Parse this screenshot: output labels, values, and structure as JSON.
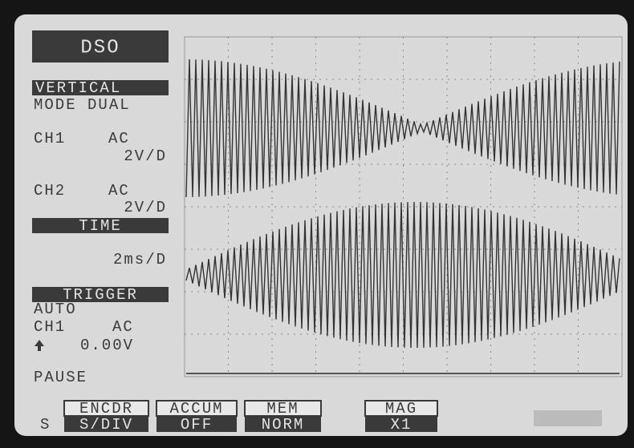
{
  "header": {
    "title": "DSO"
  },
  "vertical": {
    "heading": "VERTICAL",
    "mode": "MODE DUAL",
    "ch1": {
      "label": "CH1",
      "coupling": "AC",
      "scale": "2V/D"
    },
    "ch2": {
      "label": "CH2",
      "coupling": "AC",
      "scale": "2V/D"
    }
  },
  "time": {
    "heading": "TIME",
    "scale": "2ms/D"
  },
  "trigger": {
    "heading": "TRIGGER",
    "mode": "AUTO",
    "source": "CH1",
    "coupling": "AC",
    "level": "0.00V"
  },
  "status": "PAUSE",
  "softkeys": {
    "prefix": "S",
    "keys": [
      {
        "top": "ENCDR",
        "bottom": "S/DIV"
      },
      {
        "top": "ACCUM",
        "bottom": "OFF"
      },
      {
        "top": "MEM",
        "bottom": "NORM"
      },
      {
        "top": "MAG",
        "bottom": "X1"
      }
    ]
  }
}
